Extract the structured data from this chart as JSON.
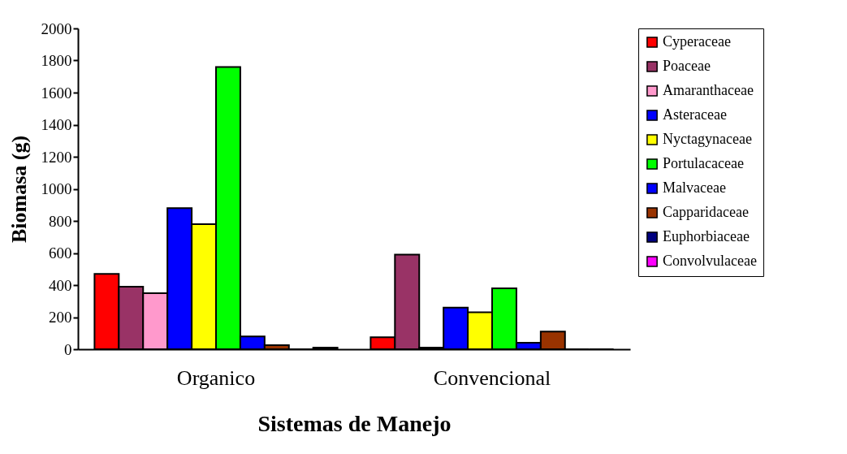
{
  "chart_data": {
    "type": "bar",
    "xlabel": "Sistemas de Manejo",
    "ylabel": "Biomasa (g)",
    "categories": [
      "Organico",
      "Convencional"
    ],
    "series": [
      {
        "name": "Cyperaceae",
        "color": "#ff0000",
        "values": [
          470,
          75
        ]
      },
      {
        "name": "Poaceae",
        "color": "#993366",
        "values": [
          390,
          590
        ]
      },
      {
        "name": "Amaranthaceae",
        "color": "#ff99cc",
        "values": [
          350,
          10
        ]
      },
      {
        "name": "Asteraceae",
        "color": "#0000ff",
        "values": [
          880,
          260
        ]
      },
      {
        "name": "Nyctagynaceae",
        "color": "#ffff00",
        "values": [
          780,
          230
        ]
      },
      {
        "name": "Portulacaceae",
        "color": "#00ff00",
        "values": [
          1760,
          380
        ]
      },
      {
        "name": "Malvaceae",
        "color": "#0000ff",
        "values": [
          80,
          40
        ]
      },
      {
        "name": "Capparidaceae",
        "color": "#993300",
        "values": [
          25,
          110
        ]
      },
      {
        "name": "Euphorbiaceae",
        "color": "#000080",
        "values": [
          0,
          0
        ]
      },
      {
        "name": "Convolvulaceae",
        "color": "#ff00ff",
        "values": [
          10,
          0
        ]
      }
    ],
    "ylim": [
      0,
      2000
    ],
    "yticks": [
      0,
      200,
      400,
      600,
      800,
      1000,
      1200,
      1400,
      1600,
      1800,
      2000
    ],
    "grid": false,
    "legend": "right"
  }
}
